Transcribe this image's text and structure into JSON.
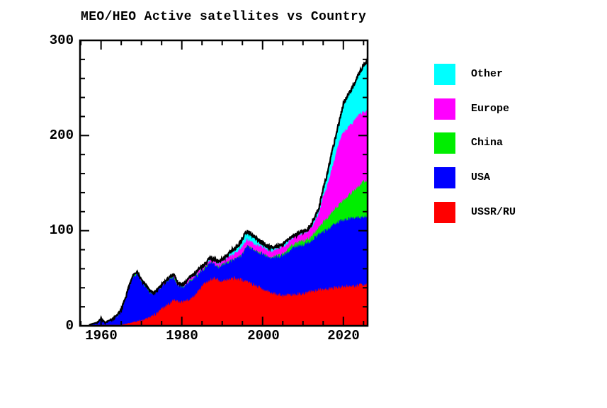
{
  "title": "MEO/HEO Active satellites vs Country",
  "colors": {
    "background": "#ffffff",
    "outline": "#000000",
    "other": "#00ffff",
    "europe": "#ff00ff",
    "china": "#00ee00",
    "usa": "#0000ff",
    "ussr_ru": "#ff0000"
  },
  "legend": {
    "items": [
      {
        "label": "Other",
        "color": "#00ffff"
      },
      {
        "label": "Europe",
        "color": "#ff00ff"
      },
      {
        "label": "China",
        "color": "#00ee00"
      },
      {
        "label": "USA",
        "color": "#0000ff"
      },
      {
        "label": "USSR/RU",
        "color": "#ff0000"
      }
    ]
  },
  "axes": {
    "x": {
      "major_ticks": [
        1960,
        1980,
        2000,
        2020
      ],
      "minor_step": 5,
      "tick_labels": [
        "1960",
        "1980",
        "2000",
        "2020"
      ]
    },
    "y": {
      "major_ticks": [
        0,
        100,
        200,
        300
      ],
      "minor_step": 20,
      "tick_labels": [
        "0",
        "100",
        "200",
        "300"
      ]
    }
  },
  "chart_data": {
    "type": "area",
    "stacked": true,
    "title": "MEO/HEO Active satellites vs Country",
    "xlabel": "",
    "ylabel": "",
    "xlim": [
      1954.8,
      2026
    ],
    "ylim": [
      0,
      300
    ],
    "grid": false,
    "legend_position": "right",
    "outline_color": "#000000",
    "years": [
      1957,
      1958,
      1959,
      1960,
      1961,
      1962,
      1963,
      1964,
      1965,
      1966,
      1967,
      1968,
      1969,
      1970,
      1971,
      1972,
      1973,
      1974,
      1975,
      1976,
      1977,
      1978,
      1979,
      1980,
      1981,
      1982,
      1983,
      1984,
      1985,
      1986,
      1987,
      1988,
      1989,
      1990,
      1991,
      1992,
      1993,
      1994,
      1995,
      1996,
      1997,
      1998,
      1999,
      2000,
      2001,
      2002,
      2003,
      2004,
      2005,
      2006,
      2007,
      2008,
      2009,
      2010,
      2011,
      2012,
      2013,
      2014,
      2015,
      2016,
      2017,
      2018,
      2019,
      2020,
      2021,
      2022,
      2023,
      2024,
      2025,
      2026
    ],
    "series": [
      {
        "name": "USSR/RU",
        "color": "#ff0000",
        "values": [
          0,
          0,
          1,
          1,
          1,
          1,
          1,
          1,
          1,
          2,
          3,
          4,
          5,
          6,
          7,
          9,
          11,
          14,
          18,
          21,
          24,
          27,
          26,
          25,
          26,
          28,
          31,
          36,
          42,
          46,
          48,
          50,
          48,
          47,
          48,
          49,
          50,
          49,
          48,
          47,
          45,
          43,
          41,
          39,
          37,
          35,
          34,
          33,
          32,
          33,
          33,
          33,
          34,
          34,
          35,
          36,
          37,
          38,
          39,
          39,
          40,
          40,
          41,
          41,
          42,
          42,
          42,
          43,
          43,
          43
        ]
      },
      {
        "name": "USA",
        "color": "#0000ff",
        "values": [
          1,
          2,
          2,
          6,
          2,
          4,
          6,
          9,
          15,
          26,
          39,
          48,
          50,
          41,
          35,
          27,
          22,
          23,
          24,
          25,
          25,
          24,
          17,
          15,
          17,
          19,
          19,
          18,
          16,
          16,
          18,
          14,
          14,
          17,
          18,
          19,
          20,
          23,
          27,
          37,
          37,
          36,
          36,
          37,
          36,
          36,
          38,
          40,
          42,
          44,
          48,
          50,
          51,
          51,
          52,
          53,
          56,
          59,
          60,
          62,
          65,
          67,
          69,
          70,
          70,
          71,
          72,
          71,
          72,
          72
        ]
      },
      {
        "name": "China",
        "color": "#00ee00",
        "values": [
          0,
          0,
          0,
          0,
          0,
          0,
          0,
          0,
          0,
          0,
          0,
          0,
          0,
          0,
          0,
          0,
          0,
          0,
          0,
          0,
          0,
          0,
          0,
          0,
          0,
          0,
          0,
          0,
          0,
          0,
          0,
          0,
          0,
          0,
          0,
          0,
          0,
          0,
          0,
          0,
          0,
          0,
          0,
          0,
          0,
          0,
          1,
          1,
          2,
          2,
          3,
          3,
          3,
          4,
          4,
          5,
          6,
          7,
          10,
          12,
          14,
          17,
          18,
          21,
          24,
          27,
          30,
          34,
          37,
          39
        ]
      },
      {
        "name": "Europe",
        "color": "#ff00ff",
        "values": [
          0,
          0,
          0,
          0,
          0,
          0,
          0,
          0,
          0,
          0,
          0,
          0,
          0,
          0,
          0,
          0,
          0,
          0,
          0,
          0,
          1,
          2,
          2,
          2,
          2,
          3,
          3,
          3,
          3,
          3,
          4,
          4,
          4,
          4,
          5,
          6,
          6,
          7,
          8,
          7,
          7,
          7,
          7,
          7,
          7,
          7,
          7,
          7,
          7,
          7,
          7,
          7,
          8,
          8,
          8,
          9,
          11,
          15,
          27,
          34,
          44,
          54,
          66,
          71,
          72,
          72,
          74,
          74,
          73,
          72
        ]
      },
      {
        "name": "Other",
        "color": "#00ffff",
        "values": [
          0,
          0,
          0,
          0,
          0,
          0,
          0,
          0,
          0,
          0,
          0,
          0,
          0,
          0,
          0,
          0,
          0,
          0,
          0,
          0,
          0,
          0,
          0,
          0,
          1,
          1,
          1,
          1,
          1,
          1,
          2,
          2,
          2,
          2,
          3,
          4,
          5,
          6,
          8,
          8,
          8,
          7,
          6,
          4,
          4,
          4,
          3,
          3,
          3,
          3,
          2,
          2,
          2,
          2,
          2,
          3,
          4,
          6,
          8,
          12,
          16,
          19,
          21,
          30,
          34,
          36,
          40,
          44,
          49,
          54
        ]
      }
    ]
  }
}
